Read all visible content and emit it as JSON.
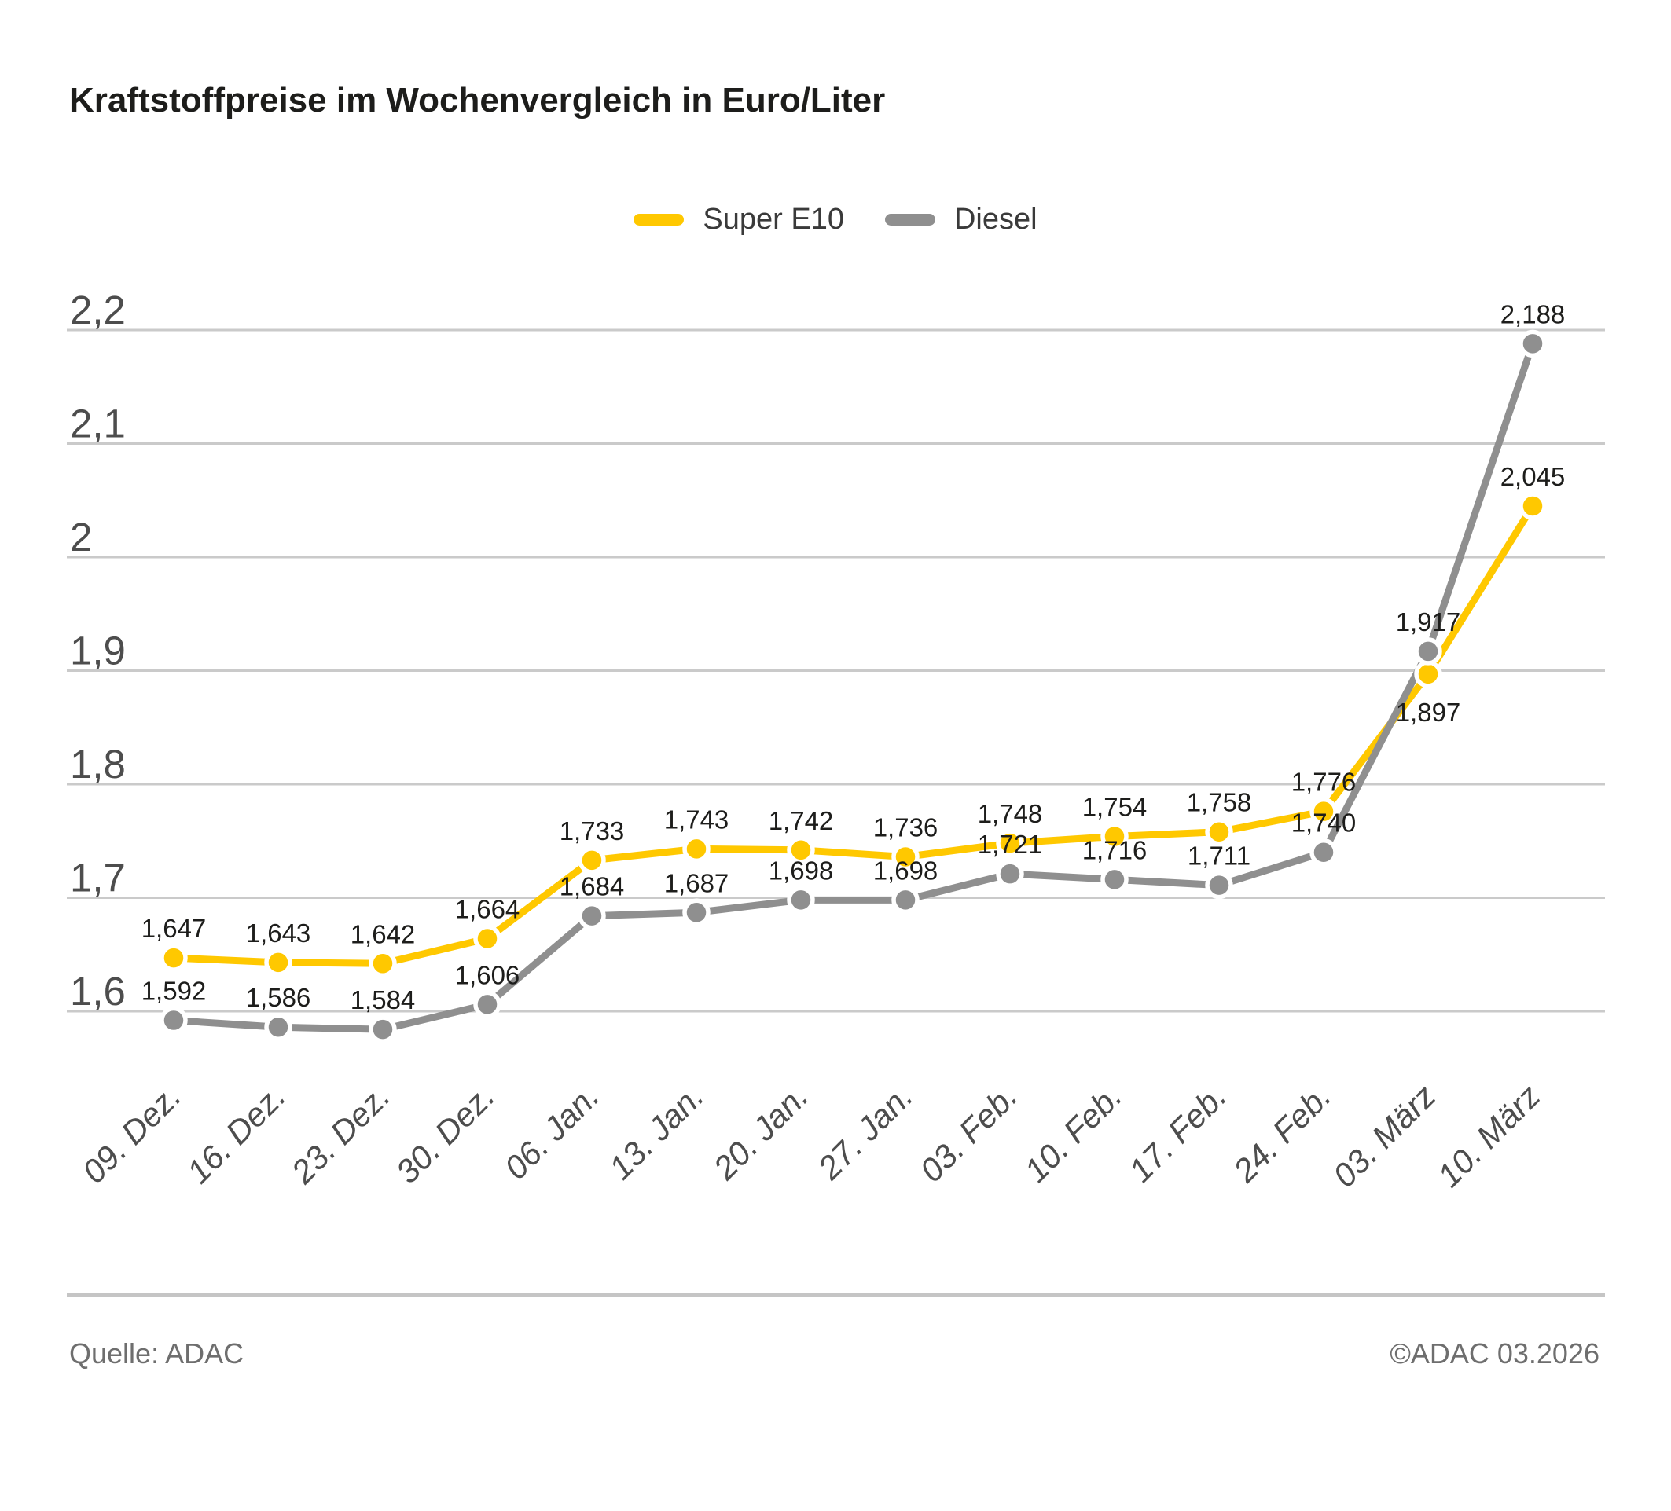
{
  "title": "Kraftstoffpreise im Wochenvergleich in Euro/Liter",
  "legend": [
    {
      "label": "Super E10",
      "color": "#FFC800"
    },
    {
      "label": "Diesel",
      "color": "#8F8F8F"
    }
  ],
  "footer": {
    "source": "Quelle: ADAC",
    "copyright": "©ADAC 03.2026"
  },
  "colors": {
    "super_e10": "#FFC800",
    "diesel": "#8F8F8F",
    "grid": "#CACACA",
    "axis_text": "#4D4D4D",
    "label_text": "#1D1D1B",
    "divider": "#C5C5C5",
    "footer_text": "#6E6E6E",
    "title_text": "#1D1D1B",
    "background": "#FFFFFF"
  },
  "chart_data": {
    "type": "line",
    "title": "Kraftstoffpreise im Wochenvergleich in Euro/Liter",
    "unit": "Euro/Liter",
    "xlabel": "",
    "ylabel": "",
    "grid": true,
    "legend_position": "top-center",
    "ylim": [
      1.56,
      2.25
    ],
    "categories": [
      "09. Dez.",
      "16. Dez.",
      "23. Dez.",
      "30. Dez.",
      "06. Jan.",
      "13. Jan.",
      "20. Jan.",
      "27. Jan.",
      "03. Feb.",
      "10. Feb.",
      "17. Feb.",
      "24. Feb.",
      "03. März",
      "10. März"
    ],
    "y_ticks": [
      {
        "value": 2.2,
        "label": "2,2"
      },
      {
        "value": 2.1,
        "label": "2,1"
      },
      {
        "value": 2.0,
        "label": "2"
      },
      {
        "value": 1.9,
        "label": "1,9"
      },
      {
        "value": 1.8,
        "label": "1,8"
      },
      {
        "value": 1.7,
        "label": "1,7"
      },
      {
        "value": 1.6,
        "label": "1,6"
      }
    ],
    "series": [
      {
        "name": "Super E10",
        "color": "#FFC800",
        "values": [
          1.647,
          1.643,
          1.642,
          1.664,
          1.733,
          1.743,
          1.742,
          1.736,
          1.748,
          1.754,
          1.758,
          1.776,
          1.897,
          2.045
        ],
        "point_labels": [
          "1,647",
          "1,643",
          "1,642",
          "1,664",
          "1,733",
          "1,743",
          "1,742",
          "1,736",
          "1,748",
          "1,754",
          "1,758",
          "1,776",
          "1,897",
          "2,045"
        ],
        "label_side": [
          "above",
          "above",
          "above",
          "above",
          "above",
          "above",
          "above",
          "above",
          "above",
          "above",
          "above",
          "above",
          "below",
          "above"
        ]
      },
      {
        "name": "Diesel",
        "color": "#8F8F8F",
        "values": [
          1.592,
          1.586,
          1.584,
          1.606,
          1.684,
          1.687,
          1.698,
          1.698,
          1.721,
          1.716,
          1.711,
          1.74,
          1.917,
          2.188
        ],
        "point_labels": [
          "1,592",
          "1,586",
          "1,584",
          "1,606",
          "1,684",
          "1,687",
          "1,698",
          "1,698",
          "1,721",
          "1,716",
          "1,711",
          "1,740",
          "1,917",
          "2,188"
        ],
        "label_side": [
          "above",
          "above",
          "above",
          "above",
          "above",
          "above",
          "above",
          "above",
          "above",
          "above",
          "above",
          "above",
          "above",
          "above"
        ]
      }
    ]
  }
}
